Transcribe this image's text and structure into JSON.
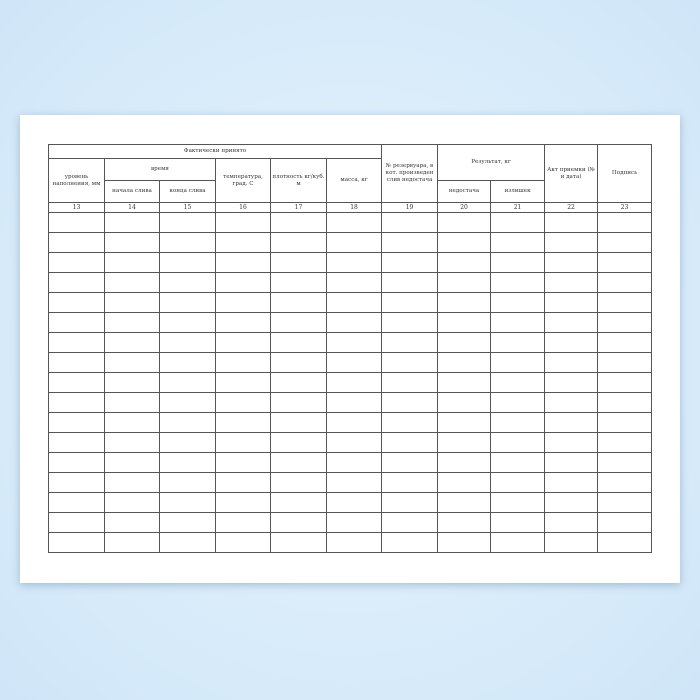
{
  "table": {
    "group_fact": "Фактически принято",
    "level": "уровень наполнения, мм",
    "time": "время",
    "start": "начала слива",
    "end": "конца слива",
    "temp": "температура, град. С",
    "density": "плотность кг/куб. м",
    "mass": "масса, кг",
    "tank": "№ резервуара, в кот. произведен слив недостача",
    "result": "Результат, кг",
    "shortage": "недостача",
    "surplus": "излишек",
    "act": "Акт приемки (№ и дата)",
    "signature": "Подпись",
    "numbers": [
      "13",
      "14",
      "15",
      "16",
      "17",
      "18",
      "19",
      "20",
      "21",
      "22",
      "23"
    ],
    "empty_rows": 17
  }
}
